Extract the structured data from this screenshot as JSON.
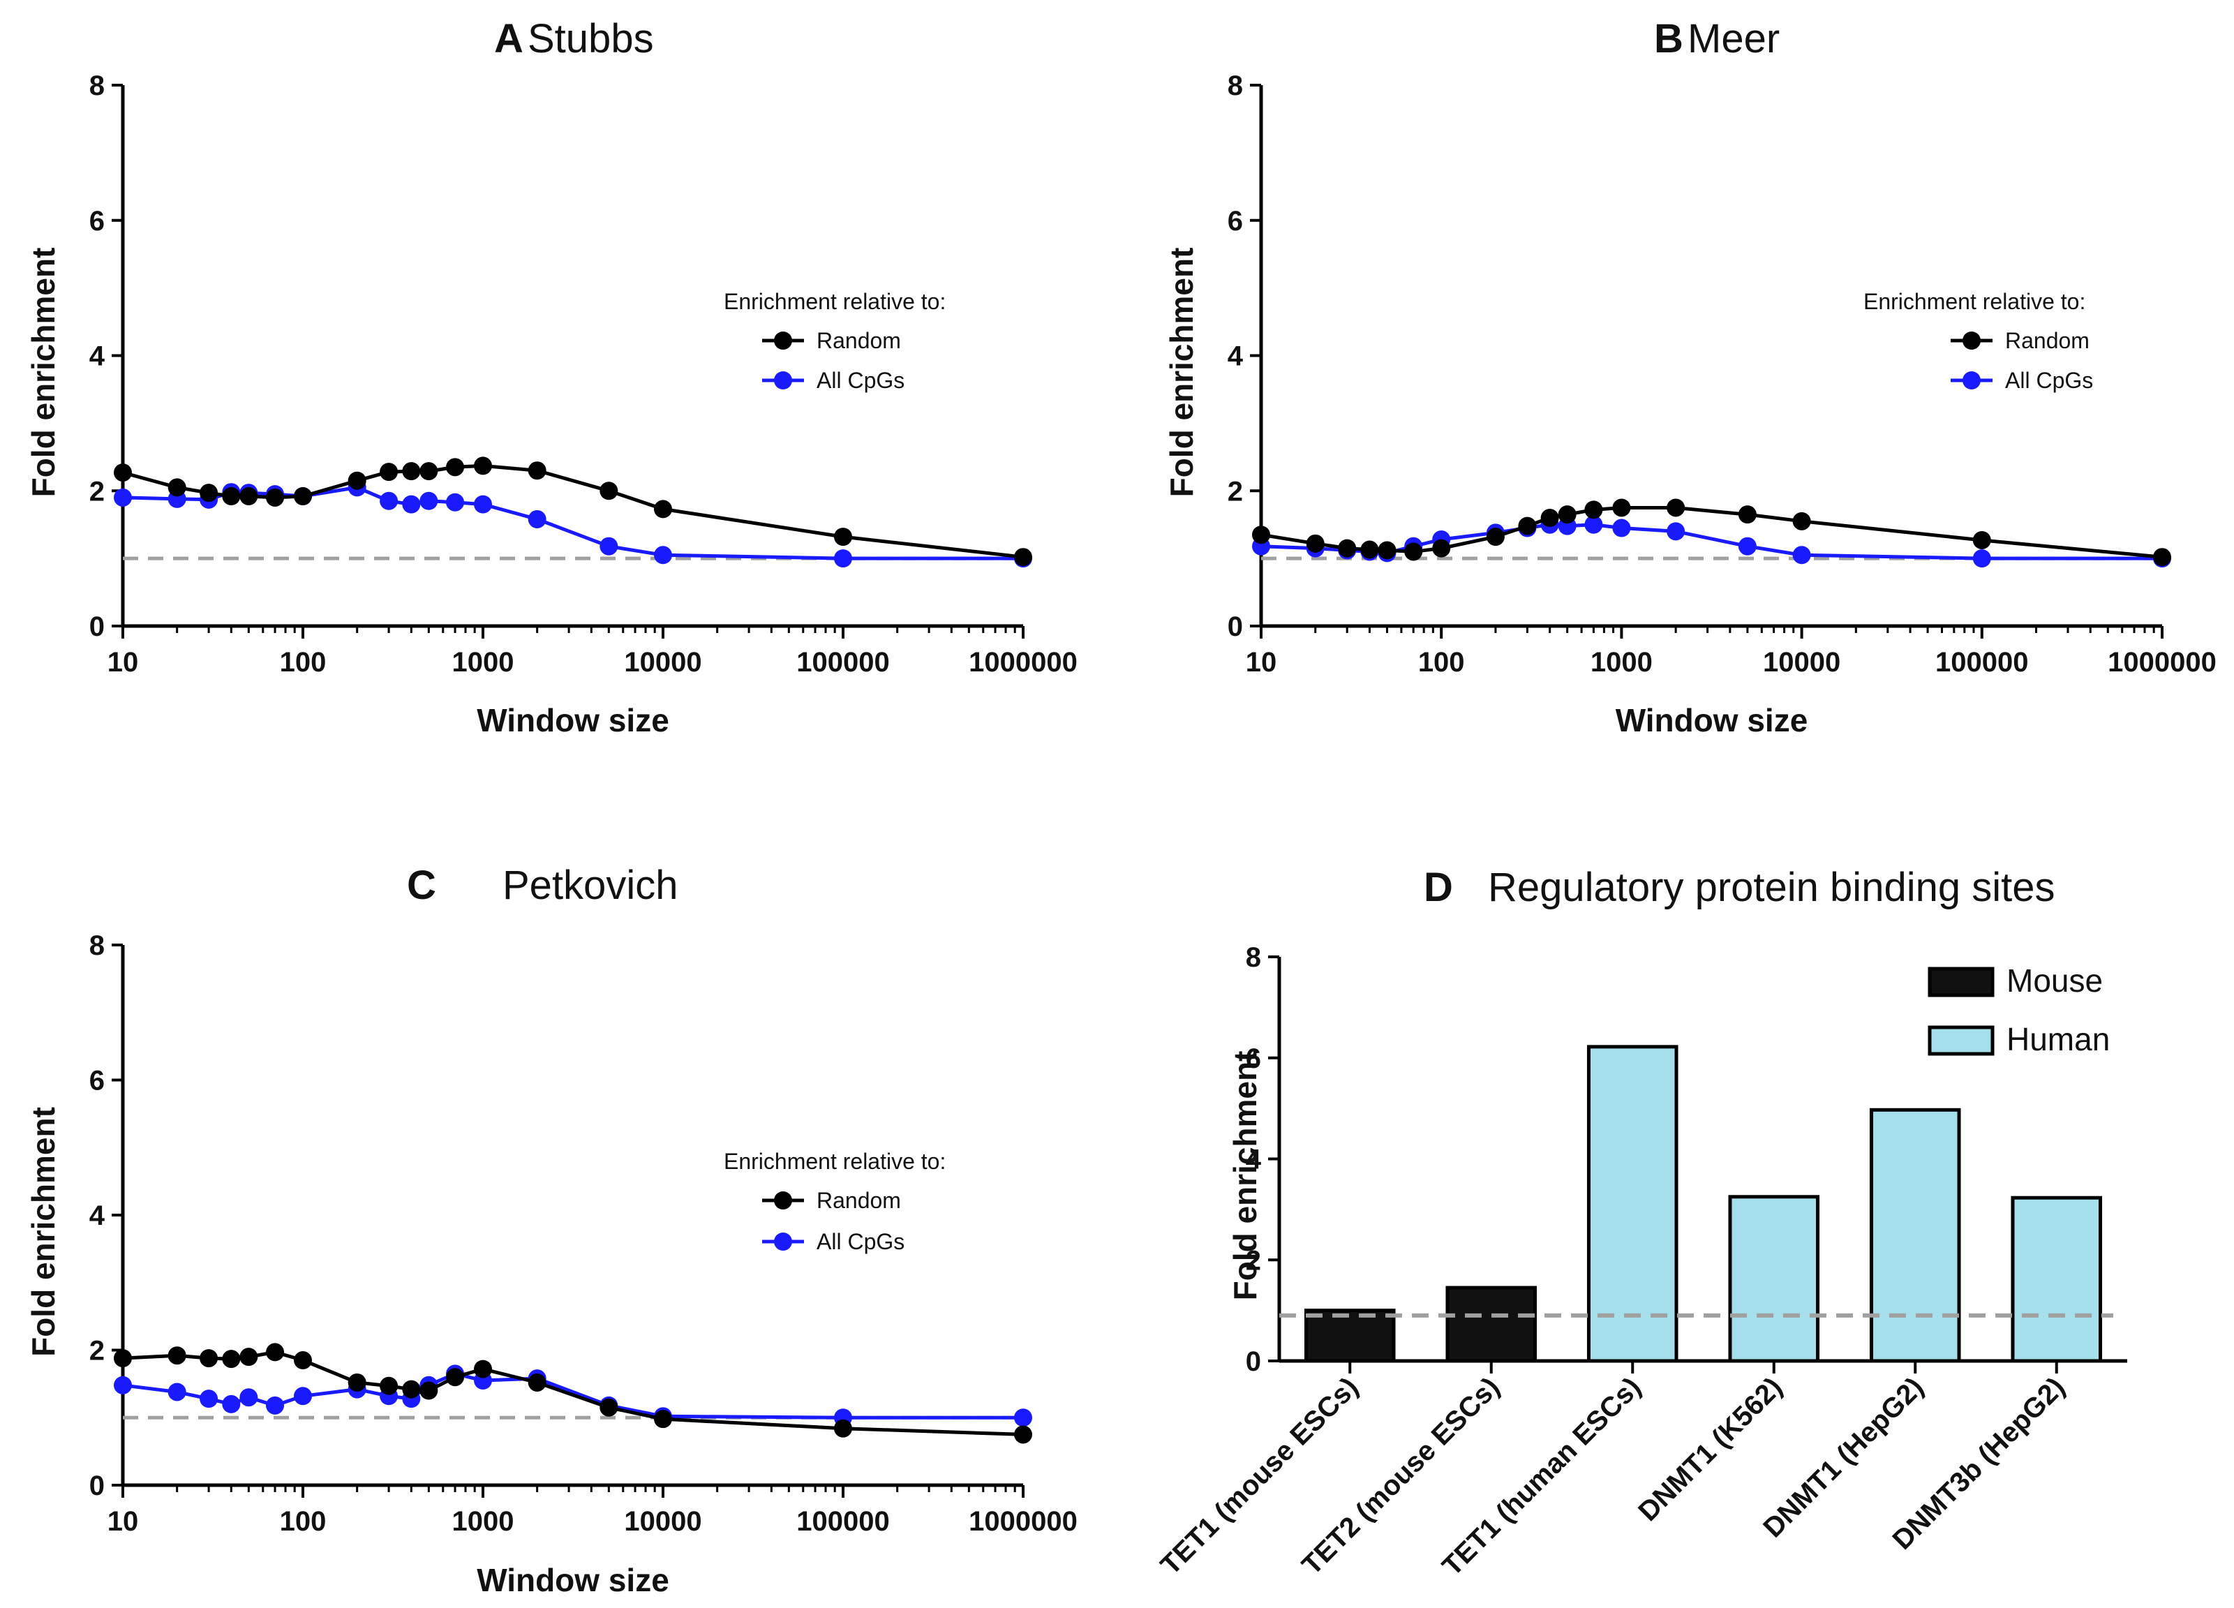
{
  "chart_data": [
    {
      "type": "line",
      "letter": "A",
      "title": "Stubbs",
      "xlabel": "Window size",
      "ylabel": "Fold enrichment",
      "xscale": "log",
      "xlim": [
        10,
        1000000
      ],
      "ylim": [
        0,
        8
      ],
      "xticks": [
        "10",
        "100",
        "1000",
        "10000",
        "100000",
        "1000000"
      ],
      "yticks": [
        "0",
        "2",
        "4",
        "6",
        "8"
      ],
      "reference_line": 1,
      "legend_title": "Enrichment relative to:",
      "legend_position": "right",
      "series": [
        {
          "name": "Random",
          "color": "#000000",
          "x": [
            10,
            20,
            30,
            40,
            50,
            70,
            100,
            200,
            300,
            400,
            500,
            700,
            1000,
            2000,
            5000,
            10000,
            100000,
            1000000
          ],
          "y": [
            2.27,
            2.05,
            1.97,
            1.92,
            1.92,
            1.9,
            1.92,
            2.15,
            2.28,
            2.29,
            2.29,
            2.35,
            2.37,
            2.3,
            2.0,
            1.73,
            1.32,
            1.02
          ]
        },
        {
          "name": "All CpGs",
          "color": "#1a1aff",
          "x": [
            10,
            20,
            30,
            40,
            50,
            70,
            100,
            200,
            300,
            400,
            500,
            700,
            1000,
            2000,
            5000,
            10000,
            100000,
            1000000
          ],
          "y": [
            1.9,
            1.88,
            1.87,
            1.98,
            1.97,
            1.95,
            1.92,
            2.05,
            1.85,
            1.8,
            1.85,
            1.83,
            1.8,
            1.58,
            1.18,
            1.05,
            1.0,
            1.0
          ]
        }
      ]
    },
    {
      "type": "line",
      "letter": "B",
      "title": "Meer",
      "xlabel": "Window size",
      "ylabel": "Fold enrichment",
      "xscale": "log",
      "xlim": [
        10,
        1000000
      ],
      "ylim": [
        0,
        8
      ],
      "xticks": [
        "10",
        "100",
        "1000",
        "10000",
        "100000",
        "1000000"
      ],
      "yticks": [
        "0",
        "2",
        "4",
        "6",
        "8"
      ],
      "reference_line": 1,
      "legend_title": "Enrichment relative to:",
      "legend_position": "right",
      "series": [
        {
          "name": "Random",
          "color": "#000000",
          "x": [
            10,
            20,
            30,
            40,
            50,
            70,
            100,
            200,
            300,
            400,
            500,
            700,
            1000,
            2000,
            5000,
            10000,
            100000,
            1000000
          ],
          "y": [
            1.35,
            1.22,
            1.15,
            1.13,
            1.12,
            1.1,
            1.15,
            1.32,
            1.48,
            1.6,
            1.65,
            1.72,
            1.75,
            1.75,
            1.65,
            1.55,
            1.27,
            1.02
          ]
        },
        {
          "name": "All CpGs",
          "color": "#1a1aff",
          "x": [
            10,
            20,
            30,
            40,
            50,
            70,
            100,
            200,
            300,
            400,
            500,
            700,
            1000,
            2000,
            5000,
            10000,
            100000,
            1000000
          ],
          "y": [
            1.18,
            1.15,
            1.12,
            1.1,
            1.08,
            1.18,
            1.28,
            1.38,
            1.45,
            1.5,
            1.48,
            1.5,
            1.45,
            1.4,
            1.18,
            1.05,
            1.0,
            1.0
          ]
        }
      ]
    },
    {
      "type": "line",
      "letter": "C",
      "title": "Petkovich",
      "xlabel": "Window size",
      "ylabel": "Fold enrichment",
      "xscale": "log",
      "xlim": [
        10,
        1000000
      ],
      "ylim": [
        0,
        8
      ],
      "xticks": [
        "10",
        "100",
        "1000",
        "10000",
        "100000",
        "1000000"
      ],
      "yticks": [
        "0",
        "2",
        "4",
        "6",
        "8"
      ],
      "reference_line": 1,
      "legend_title": "Enrichment relative to:",
      "legend_position": "right",
      "series": [
        {
          "name": "Random",
          "color": "#000000",
          "x": [
            10,
            20,
            30,
            40,
            50,
            70,
            100,
            200,
            300,
            400,
            500,
            700,
            1000,
            2000,
            5000,
            10000,
            100000,
            1000000
          ],
          "y": [
            1.88,
            1.92,
            1.88,
            1.87,
            1.9,
            1.97,
            1.85,
            1.52,
            1.47,
            1.42,
            1.4,
            1.6,
            1.72,
            1.52,
            1.15,
            0.98,
            0.84,
            0.75
          ]
        },
        {
          "name": "All CpGs",
          "color": "#1a1aff",
          "x": [
            10,
            20,
            30,
            40,
            50,
            70,
            100,
            200,
            300,
            400,
            500,
            700,
            1000,
            2000,
            5000,
            10000,
            100000,
            1000000
          ],
          "y": [
            1.48,
            1.38,
            1.28,
            1.2,
            1.3,
            1.18,
            1.32,
            1.42,
            1.32,
            1.28,
            1.48,
            1.65,
            1.55,
            1.58,
            1.18,
            1.02,
            1.0,
            1.0
          ]
        }
      ]
    },
    {
      "type": "bar",
      "letter": "D",
      "title": "Regulatory protein binding sites",
      "xlabel": "",
      "ylabel": "Fold enrichment",
      "ylim": [
        0,
        8
      ],
      "yticks": [
        "0",
        "2",
        "4",
        "6",
        "8"
      ],
      "reference_line": 0.9,
      "legend_position": "top-right",
      "categories": [
        "TET1 (mouse ESCs)",
        "TET2 (mouse ESCs)",
        "TET1 (human ESCs)",
        "DNMT1 (K562)",
        "DNMT1 (HepG2)",
        "DNMT3b (HepG2)"
      ],
      "values": [
        1.0,
        1.45,
        6.22,
        3.25,
        4.97,
        3.23
      ],
      "groups": [
        "Mouse",
        "Mouse",
        "Human",
        "Human",
        "Human",
        "Human"
      ],
      "legend": [
        {
          "name": "Mouse",
          "color": "#111111"
        },
        {
          "name": "Human",
          "color": "#a5dfec"
        }
      ]
    }
  ]
}
